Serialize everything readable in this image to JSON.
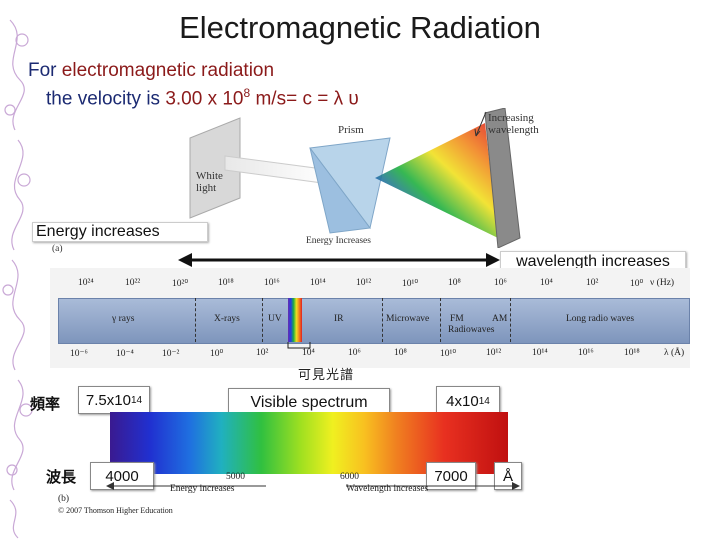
{
  "title": "Electromagnetic Radiation",
  "intro": {
    "line1_prefix": "For ",
    "line1_highlight": "electromagnetic radiation",
    "line2_prefix": "the velocity is ",
    "line2_value": "3.00 x 10",
    "line2_exp": "8",
    "line2_suffix": " m/s= c = λ υ"
  },
  "prism_figure": {
    "white_light": "White light",
    "prism": "Prism",
    "increasing_wavelength": "Increasing wavelength",
    "energy_increases": "Energy Increases",
    "panel_label": "(a)"
  },
  "energy_increases_label": "Energy increases",
  "wavelength_increases_label": "wavelength increases",
  "spectrum_scale": {
    "top_ticks": [
      "10²⁴",
      "10²²",
      "10²⁰",
      "10¹⁸",
      "10¹⁶",
      "10¹⁴",
      "10¹²",
      "10¹⁰",
      "10⁸",
      "10⁶",
      "10⁴",
      "10²",
      "10⁰"
    ],
    "top_unit": "ν (Hz)",
    "bottom_ticks": [
      "10⁻⁶",
      "10⁻⁴",
      "10⁻²",
      "10⁰",
      "10²",
      "10⁴",
      "10⁶",
      "10⁸",
      "10¹⁰",
      "10¹²",
      "10¹⁴",
      "10¹⁶",
      "10¹⁸"
    ],
    "bottom_unit": "λ (Å)",
    "regions": [
      "γ rays",
      "X-rays",
      "UV",
      "IR",
      "Microwave",
      "FM",
      "Radiowaves",
      "AM",
      "Long radio waves"
    ]
  },
  "visible_panel": {
    "chinese_title": "可見光譜",
    "freq_label": "頻率",
    "freq_value": "7.5x10",
    "freq_exp": "14",
    "visible_spectrum": "Visible spectrum",
    "freq_value_right": "4x10",
    "freq_exp_right": "14",
    "wavelength_label": "波長",
    "wl_left": "4000",
    "wl_right": "7000",
    "angstrom": "Å",
    "tick_5000": "5000",
    "tick_6000": "6000",
    "energy_increases": "Energy increases",
    "wavelength_increases": "Wavelength increases",
    "panel_label": "(b)",
    "copyright": "© 2007 Thomson Higher Education"
  },
  "colors": {
    "title_text": "#1a1a1a",
    "blue_text": "#1b2a72",
    "highlight_red": "#8b1a1a",
    "bar_blue": "#8ea3c6"
  }
}
